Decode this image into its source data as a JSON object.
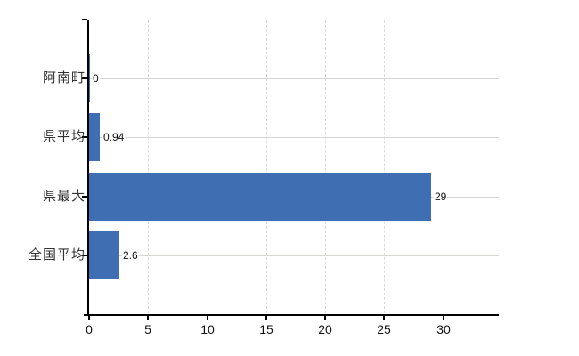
{
  "chart_data": {
    "type": "bar",
    "orientation": "horizontal",
    "categories": [
      "阿南町",
      "県平均",
      "県最大",
      "全国平均"
    ],
    "values": [
      0,
      0.94,
      29,
      2.6
    ],
    "value_labels": [
      "0",
      "0.94",
      "29",
      "2.6"
    ],
    "xticks": [
      0,
      5,
      10,
      15,
      20,
      25,
      30
    ],
    "xtick_labels": [
      "0",
      "5",
      "10",
      "15",
      "20",
      "25",
      "30"
    ],
    "xlim": [
      0,
      34.7
    ],
    "grid": true,
    "legend": false,
    "title": "",
    "xlabel": "",
    "ylabel": "",
    "bar_color": "#3f6fb2",
    "axis_color": "#000000",
    "gridline_color": "#d9d9d9",
    "category_line_color": "#d3d8d3",
    "text_color": "#333333",
    "background_color": "#ffffff"
  }
}
